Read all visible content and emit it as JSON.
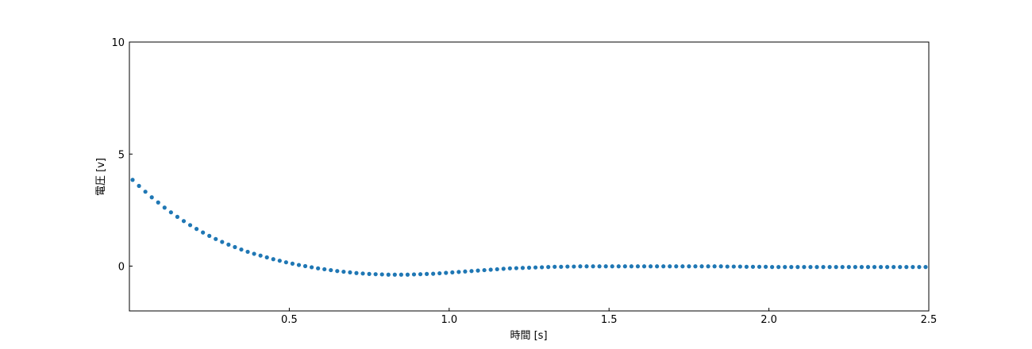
{
  "chart_data": {
    "type": "scatter",
    "xlabel": "時間 [s]",
    "ylabel": "電圧 [v]",
    "xlim": [
      0.0,
      2.5
    ],
    "ylim": [
      -2.0,
      10.0
    ],
    "x_ticks": [
      0.5,
      1.0,
      1.5,
      2.0,
      2.5
    ],
    "y_ticks": [
      0,
      5,
      10
    ],
    "x_tick_labels": [
      "0.5",
      "1.0",
      "1.5",
      "2.0",
      "2.5"
    ],
    "y_tick_labels": [
      "0",
      "5",
      "10"
    ],
    "grid": false,
    "marker_color": "#1f77b4",
    "x": [
      0.01,
      0.03,
      0.05,
      0.07,
      0.09,
      0.11,
      0.13,
      0.15,
      0.17,
      0.19,
      0.21,
      0.23,
      0.25,
      0.27,
      0.29,
      0.31,
      0.33,
      0.35,
      0.37,
      0.39,
      0.41,
      0.43,
      0.45,
      0.47,
      0.49,
      0.51,
      0.53,
      0.55,
      0.57,
      0.59,
      0.61,
      0.63,
      0.65,
      0.67,
      0.69,
      0.71,
      0.73,
      0.75,
      0.77,
      0.79,
      0.81,
      0.83,
      0.85,
      0.87,
      0.89,
      0.91,
      0.93,
      0.95,
      0.97,
      0.99,
      1.01,
      1.03,
      1.05,
      1.07,
      1.09,
      1.11,
      1.13,
      1.15,
      1.17,
      1.19,
      1.21,
      1.23,
      1.25,
      1.27,
      1.29,
      1.31,
      1.33,
      1.35,
      1.37,
      1.39,
      1.41,
      1.43,
      1.45,
      1.47,
      1.49,
      1.51,
      1.53,
      1.55,
      1.57,
      1.59,
      1.61,
      1.63,
      1.65,
      1.67,
      1.69,
      1.71,
      1.73,
      1.75,
      1.77,
      1.79,
      1.81,
      1.83,
      1.85,
      1.87,
      1.89,
      1.91,
      1.93,
      1.95,
      1.97,
      1.99,
      2.01,
      2.03,
      2.05,
      2.07,
      2.09,
      2.11,
      2.13,
      2.15,
      2.17,
      2.19,
      2.21,
      2.23,
      2.25,
      2.27,
      2.29,
      2.31,
      2.33,
      2.35,
      2.37,
      2.39,
      2.41,
      2.43,
      2.45,
      2.47,
      2.49
    ],
    "y": [
      3.85,
      3.58,
      3.32,
      3.07,
      2.84,
      2.61,
      2.4,
      2.2,
      2.01,
      1.83,
      1.66,
      1.5,
      1.35,
      1.21,
      1.08,
      0.96,
      0.85,
      0.74,
      0.64,
      0.55,
      0.47,
      0.39,
      0.31,
      0.24,
      0.17,
      0.11,
      0.05,
      0.0,
      -0.05,
      -0.1,
      -0.14,
      -0.18,
      -0.22,
      -0.25,
      -0.28,
      -0.31,
      -0.33,
      -0.35,
      -0.36,
      -0.37,
      -0.38,
      -0.38,
      -0.38,
      -0.38,
      -0.37,
      -0.36,
      -0.35,
      -0.34,
      -0.32,
      -0.3,
      -0.28,
      -0.26,
      -0.24,
      -0.22,
      -0.2,
      -0.18,
      -0.16,
      -0.14,
      -0.12,
      -0.1,
      -0.09,
      -0.08,
      -0.07,
      -0.06,
      -0.05,
      -0.04,
      -0.03,
      -0.03,
      -0.02,
      -0.02,
      -0.01,
      -0.01,
      -0.01,
      -0.01,
      -0.01,
      -0.01,
      -0.01,
      -0.01,
      -0.01,
      -0.01,
      -0.01,
      -0.01,
      -0.01,
      -0.01,
      -0.01,
      -0.01,
      -0.01,
      -0.01,
      -0.01,
      -0.01,
      -0.01,
      -0.01,
      -0.01,
      -0.02,
      -0.02,
      -0.02,
      -0.03,
      -0.03,
      -0.03,
      -0.03,
      -0.04,
      -0.04,
      -0.04,
      -0.04,
      -0.04,
      -0.04,
      -0.04,
      -0.04,
      -0.04,
      -0.04,
      -0.04,
      -0.04,
      -0.04,
      -0.04,
      -0.04,
      -0.04,
      -0.04,
      -0.04,
      -0.04,
      -0.04,
      -0.04,
      -0.04,
      -0.04,
      -0.04,
      -0.04
    ]
  }
}
